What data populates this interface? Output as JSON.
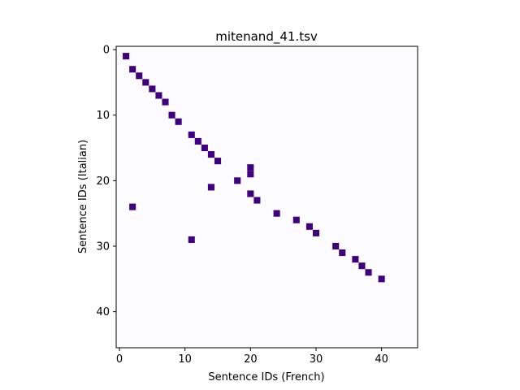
{
  "chart_data": {
    "type": "heatmap",
    "title": "mitenand_41.tsv",
    "xlabel": "Sentence IDs (French)",
    "ylabel": "Sentence IDs (Italian)",
    "x_range": [
      -0.5,
      45.5
    ],
    "y_range": [
      -0.5,
      45.5
    ],
    "y_inverted": true,
    "x_ticks": [
      0,
      10,
      20,
      30,
      40
    ],
    "y_ticks": [
      0,
      10,
      20,
      30,
      40
    ],
    "background_color": "#fcfbfd",
    "cell_color": "#3f007d",
    "grid": false,
    "legend": "none",
    "points": [
      [
        1,
        1
      ],
      [
        2,
        3
      ],
      [
        3,
        4
      ],
      [
        4,
        5
      ],
      [
        5,
        6
      ],
      [
        6,
        7
      ],
      [
        7,
        8
      ],
      [
        8,
        10
      ],
      [
        9,
        11
      ],
      [
        11,
        13
      ],
      [
        12,
        14
      ],
      [
        13,
        15
      ],
      [
        14,
        16
      ],
      [
        15,
        17
      ],
      [
        20,
        18
      ],
      [
        20,
        19
      ],
      [
        18,
        20
      ],
      [
        14,
        21
      ],
      [
        20,
        22
      ],
      [
        21,
        23
      ],
      [
        2,
        24
      ],
      [
        24,
        25
      ],
      [
        27,
        26
      ],
      [
        29,
        27
      ],
      [
        30,
        28
      ],
      [
        11,
        29
      ],
      [
        33,
        30
      ],
      [
        34,
        31
      ],
      [
        36,
        32
      ],
      [
        37,
        33
      ],
      [
        38,
        34
      ],
      [
        40,
        35
      ]
    ]
  }
}
